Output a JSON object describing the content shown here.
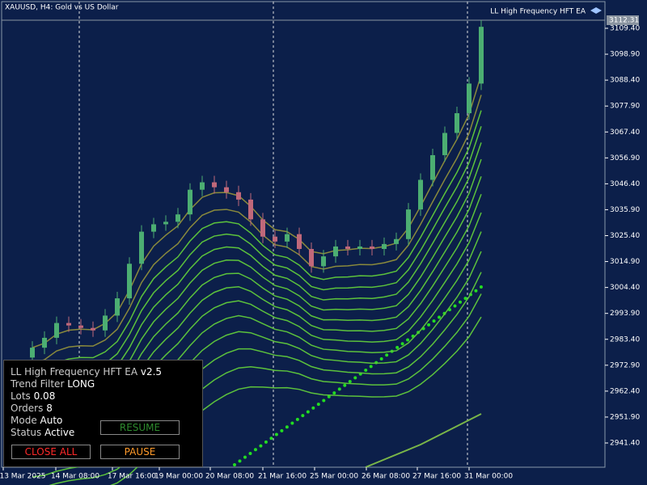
{
  "header": {
    "symbol": "XAUUSD, H4:  Gold vs US Dollar",
    "ea_name": "LL High Frequency HFT EA"
  },
  "price_axis": {
    "labels": [
      "3109.40",
      "3098.90",
      "3088.40",
      "3077.90",
      "3067.40",
      "3056.90",
      "3046.40",
      "3035.90",
      "3025.40",
      "3014.90",
      "3004.40",
      "2993.90",
      "2983.40",
      "2972.90",
      "2962.40",
      "2951.90",
      "2941.40"
    ],
    "current": "3112.31"
  },
  "time_axis": {
    "labels": [
      "13 Mar 2025",
      "14 Mar 08:00",
      "17 Mar 16:00",
      "19 Mar 00:00",
      "20 Mar 08:00",
      "21 Mar 16:00",
      "25 Mar 00:00",
      "26 Mar 08:00",
      "27 Mar 16:00",
      "31 Mar 00:00"
    ]
  },
  "price": {
    "first_open": 2976,
    "closes": [
      2980,
      2984,
      2990,
      2989,
      2988,
      2987,
      2993,
      3000,
      3014,
      3027,
      3030,
      3031,
      3034,
      3044,
      3047,
      3045,
      3043,
      3040,
      3032,
      3025,
      3023,
      3026,
      3020,
      3013,
      3017,
      3021,
      3020,
      3021,
      3020,
      3022,
      3024,
      3036,
      3048,
      3058,
      3067,
      3075,
      3087,
      3110
    ]
  },
  "panel": {
    "title": "LL High Frequency HFT EA",
    "version": "v2.5",
    "rows": [
      [
        "Trend Filter",
        "LONG"
      ],
      [
        "Lots",
        "0.08"
      ],
      [
        "Orders",
        "8"
      ],
      [
        "Mode",
        "Auto"
      ],
      [
        "Status",
        "Active"
      ]
    ],
    "buttons": {
      "resume": "RESUME",
      "close_all": "CLOSE ALL",
      "pause": "PAUSE"
    }
  }
}
